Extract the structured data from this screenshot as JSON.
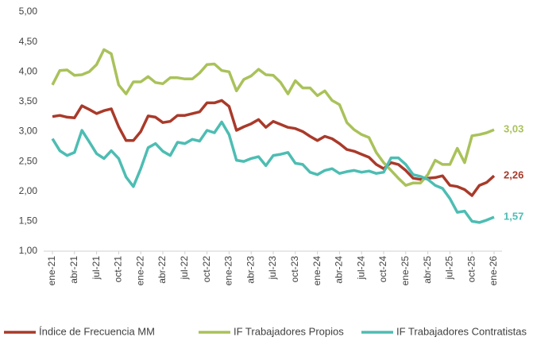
{
  "chart_data": {
    "type": "line",
    "categories": [
      "ene-21",
      null,
      null,
      "abr-21",
      null,
      null,
      "jul-21",
      null,
      null,
      "oct-21",
      null,
      null,
      "ene-22",
      null,
      null,
      "abr-22",
      null,
      null,
      "jul-22",
      null,
      null,
      "oct-22",
      null,
      null,
      "ene-23",
      null,
      null,
      "abr-23",
      null,
      null,
      "jul-23",
      null,
      null,
      "oct-23",
      null,
      null,
      "ene-24",
      null,
      null,
      "abr-24",
      null,
      null,
      "jul-24",
      null,
      null,
      "oct-24",
      null,
      null,
      "ene-25",
      null,
      null,
      "abr-25",
      null,
      null,
      "jul-25",
      null,
      null,
      "oct-25",
      null,
      null,
      "ene-26"
    ],
    "series": [
      {
        "name": "Índice de Frecuencia MM",
        "color": "#a93a2a",
        "values": [
          3.25,
          3.27,
          3.24,
          3.23,
          3.43,
          3.37,
          3.3,
          3.35,
          3.38,
          3.08,
          2.85,
          2.85,
          3.0,
          3.26,
          3.24,
          3.15,
          3.17,
          3.27,
          3.27,
          3.3,
          3.33,
          3.48,
          3.48,
          3.52,
          3.42,
          3.02,
          3.08,
          3.13,
          3.2,
          3.07,
          3.17,
          3.12,
          3.07,
          3.05,
          3.0,
          2.92,
          2.85,
          2.92,
          2.88,
          2.8,
          2.7,
          2.67,
          2.62,
          2.57,
          2.45,
          2.38,
          2.48,
          2.45,
          2.35,
          2.22,
          2.2,
          2.22,
          2.23,
          2.26,
          2.1,
          2.08,
          2.03,
          1.93,
          2.1,
          2.15,
          2.26
        ],
        "value_labels": [
          null,
          null,
          null,
          null,
          null,
          null,
          null,
          null,
          null,
          null,
          null,
          null,
          null,
          null,
          null,
          null,
          null,
          null,
          null,
          null,
          null,
          null,
          null,
          null,
          null,
          null,
          null,
          null,
          null,
          null,
          null,
          null,
          null,
          null,
          null,
          null,
          null,
          null,
          null,
          null,
          null,
          null,
          null,
          null,
          null,
          null,
          null,
          null,
          null,
          null,
          null,
          null,
          null,
          null,
          null,
          null,
          null,
          null,
          null,
          null,
          "2,26"
        ]
      },
      {
        "name": "IF Trabajadores Propios",
        "color": "#a9c25a",
        "values": [
          3.78,
          4.02,
          4.03,
          3.94,
          3.95,
          4.0,
          4.12,
          4.37,
          4.3,
          3.78,
          3.63,
          3.83,
          3.83,
          3.92,
          3.82,
          3.8,
          3.9,
          3.9,
          3.88,
          3.88,
          3.98,
          4.12,
          4.13,
          4.02,
          4.0,
          3.68,
          3.87,
          3.93,
          4.04,
          3.95,
          3.94,
          3.82,
          3.63,
          3.85,
          3.73,
          3.73,
          3.6,
          3.68,
          3.52,
          3.45,
          3.15,
          3.03,
          2.95,
          2.9,
          2.65,
          2.48,
          2.35,
          2.22,
          2.1,
          2.14,
          2.14,
          2.28,
          2.52,
          2.45,
          2.45,
          2.72,
          2.48,
          2.93,
          2.95,
          2.98,
          3.03
        ],
        "value_labels": [
          null,
          null,
          null,
          null,
          null,
          null,
          null,
          null,
          null,
          null,
          null,
          null,
          null,
          null,
          null,
          null,
          null,
          null,
          null,
          null,
          null,
          null,
          null,
          null,
          null,
          null,
          null,
          null,
          null,
          null,
          null,
          null,
          null,
          null,
          null,
          null,
          null,
          null,
          null,
          null,
          null,
          null,
          null,
          null,
          null,
          null,
          null,
          null,
          null,
          null,
          null,
          null,
          null,
          null,
          null,
          null,
          null,
          null,
          null,
          null,
          "3,03"
        ]
      },
      {
        "name": "IF Trabajadores Contratistas",
        "color": "#4dbdb3",
        "values": [
          2.88,
          2.68,
          2.6,
          2.65,
          3.02,
          2.83,
          2.63,
          2.55,
          2.68,
          2.55,
          2.24,
          2.08,
          2.38,
          2.73,
          2.8,
          2.67,
          2.6,
          2.82,
          2.8,
          2.87,
          2.84,
          3.02,
          2.98,
          3.16,
          2.95,
          2.52,
          2.5,
          2.55,
          2.58,
          2.43,
          2.6,
          2.62,
          2.65,
          2.47,
          2.45,
          2.32,
          2.28,
          2.35,
          2.38,
          2.3,
          2.33,
          2.35,
          2.32,
          2.34,
          2.3,
          2.32,
          2.56,
          2.56,
          2.45,
          2.28,
          2.25,
          2.2,
          2.1,
          2.05,
          1.88,
          1.65,
          1.67,
          1.5,
          1.48,
          1.52,
          1.57
        ],
        "value_labels": [
          null,
          null,
          null,
          null,
          null,
          null,
          null,
          null,
          null,
          null,
          null,
          null,
          null,
          null,
          null,
          null,
          null,
          null,
          null,
          null,
          null,
          null,
          null,
          null,
          null,
          null,
          null,
          null,
          null,
          null,
          null,
          null,
          null,
          null,
          null,
          null,
          null,
          null,
          null,
          null,
          null,
          null,
          null,
          null,
          null,
          null,
          null,
          null,
          null,
          null,
          null,
          null,
          null,
          null,
          null,
          null,
          null,
          null,
          null,
          null,
          "1,57"
        ]
      }
    ],
    "ylim": [
      1,
      5
    ],
    "yticks": [
      {
        "value": 1,
        "label": "1,00"
      },
      {
        "value": 1.5,
        "label": "1,50"
      },
      {
        "value": 2,
        "label": "2,00"
      },
      {
        "value": 2.5,
        "label": "2,50"
      },
      {
        "value": 3,
        "label": "3,00"
      },
      {
        "value": 3.5,
        "label": "3,50"
      },
      {
        "value": 4,
        "label": "4,00"
      },
      {
        "value": 4.5,
        "label": "4,50"
      },
      {
        "value": 5,
        "label": "5,00"
      }
    ],
    "grid": false,
    "legend": "bottom"
  }
}
